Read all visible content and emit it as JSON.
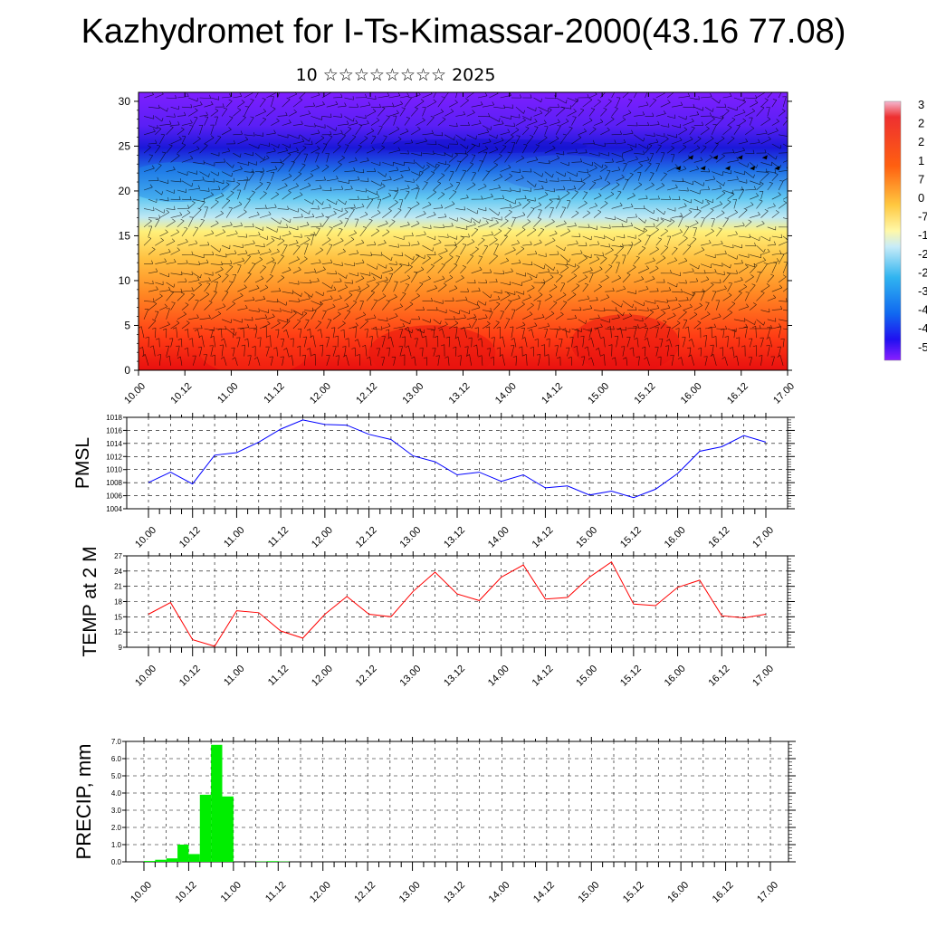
{
  "title": "Kazhydromet for I-Ts-Kimassar-2000(43.16 77.08)",
  "subtitle": "10 ☆☆☆☆☆☆☆☆ 2025",
  "time_ticks": [
    "10.00",
    "10.12",
    "11.00",
    "11.12",
    "12.00",
    "12.12",
    "13.00",
    "13.12",
    "14.00",
    "14.12",
    "15.00",
    "15.12",
    "16.00",
    "16.12",
    "17.00"
  ],
  "colors": {
    "temp_cross_section": [
      "#7f1fff",
      "#2a10f0",
      "#1f6fe6",
      "#62c8f2",
      "#bfe8f3",
      "#fff07a",
      "#ffc040",
      "#ff8a24",
      "#ff3c14",
      "#e80f0f"
    ],
    "pmsl_line": "#0000ff",
    "temp_line": "#ff0000",
    "precip_bar": "#00ee00",
    "colorbar": [
      "#e8a0c8",
      "#ee2020",
      "#ff7010",
      "#ffd040",
      "#fff8a8",
      "#c8ecf8",
      "#30b4f0",
      "#1068f0",
      "#3010f0",
      "#8a1fff"
    ]
  },
  "chart_data": [
    {
      "type": "heatmap",
      "name": "cross-section",
      "ylim": [
        0,
        31
      ],
      "yticks": [
        0,
        5,
        10,
        15,
        20,
        25,
        30
      ],
      "x_time_range": [
        0,
        168
      ],
      "colorbar_labels": [
        "3",
        "2",
        "2",
        "1",
        "7",
        "0",
        "-7",
        "-1",
        "-2",
        "-2",
        "-3",
        "-4",
        "-4",
        "-5"
      ]
    },
    {
      "type": "line",
      "name": "pmsl",
      "ylabel": "PMSL",
      "ylim": [
        1004,
        1018
      ],
      "yticks": [
        1004,
        1006,
        1008,
        1010,
        1012,
        1014,
        1016,
        1018
      ],
      "x": [
        0,
        6,
        12,
        18,
        24,
        30,
        36,
        42,
        48,
        54,
        60,
        66,
        72,
        78,
        84,
        90,
        96,
        102,
        108,
        114,
        120,
        126,
        132,
        138,
        144,
        150,
        156,
        162,
        168
      ],
      "values": [
        1008,
        1009.6,
        1007.8,
        1012.2,
        1012.6,
        1014.2,
        1016.2,
        1017.6,
        1016.9,
        1016.8,
        1015.4,
        1014.6,
        1012.1,
        1011.2,
        1009.2,
        1009.6,
        1008.2,
        1009.2,
        1007.2,
        1007.5,
        1006.1,
        1006.7,
        1005.7,
        1007,
        1009.4,
        1012.8,
        1013.5,
        1015.2,
        1014.2
      ]
    },
    {
      "type": "line",
      "name": "temp-2m",
      "ylabel": "TEMP at 2 M",
      "ylim": [
        9,
        27
      ],
      "yticks": [
        9,
        12,
        15,
        18,
        21,
        24,
        27
      ],
      "x": [
        0,
        6,
        12,
        18,
        24,
        30,
        36,
        42,
        48,
        54,
        60,
        66,
        72,
        78,
        84,
        90,
        96,
        102,
        108,
        114,
        120,
        126,
        132,
        138,
        144,
        150,
        156,
        162,
        168
      ],
      "values": [
        15.5,
        17.8,
        10.5,
        9.2,
        16.2,
        15.8,
        12.2,
        10.8,
        15.5,
        19,
        15.5,
        15,
        20,
        23.8,
        19.5,
        18.2,
        22.8,
        25.2,
        18.5,
        18.8,
        22.8,
        25.8,
        17.5,
        17.2,
        20.8,
        22.2,
        15.2,
        14.8,
        15.5
      ]
    },
    {
      "type": "bar",
      "name": "precip",
      "ylabel": "PRECIP, mm",
      "ylim": [
        0,
        7
      ],
      "yticks": [
        "0.0",
        "1.0",
        "2.0",
        "3.0",
        "4.0",
        "5.0",
        "6.0",
        "7.0"
      ],
      "bar_width_h": 3,
      "x": [
        3,
        6,
        9,
        12,
        15,
        18,
        21,
        24,
        27,
        30,
        33,
        36,
        39,
        42,
        45
      ],
      "values": [
        0.05,
        0.12,
        0.2,
        1.0,
        0.45,
        3.9,
        6.8,
        3.8,
        0.0,
        0.0,
        0.02,
        0.04,
        0.02,
        0.0,
        0.0
      ]
    }
  ]
}
